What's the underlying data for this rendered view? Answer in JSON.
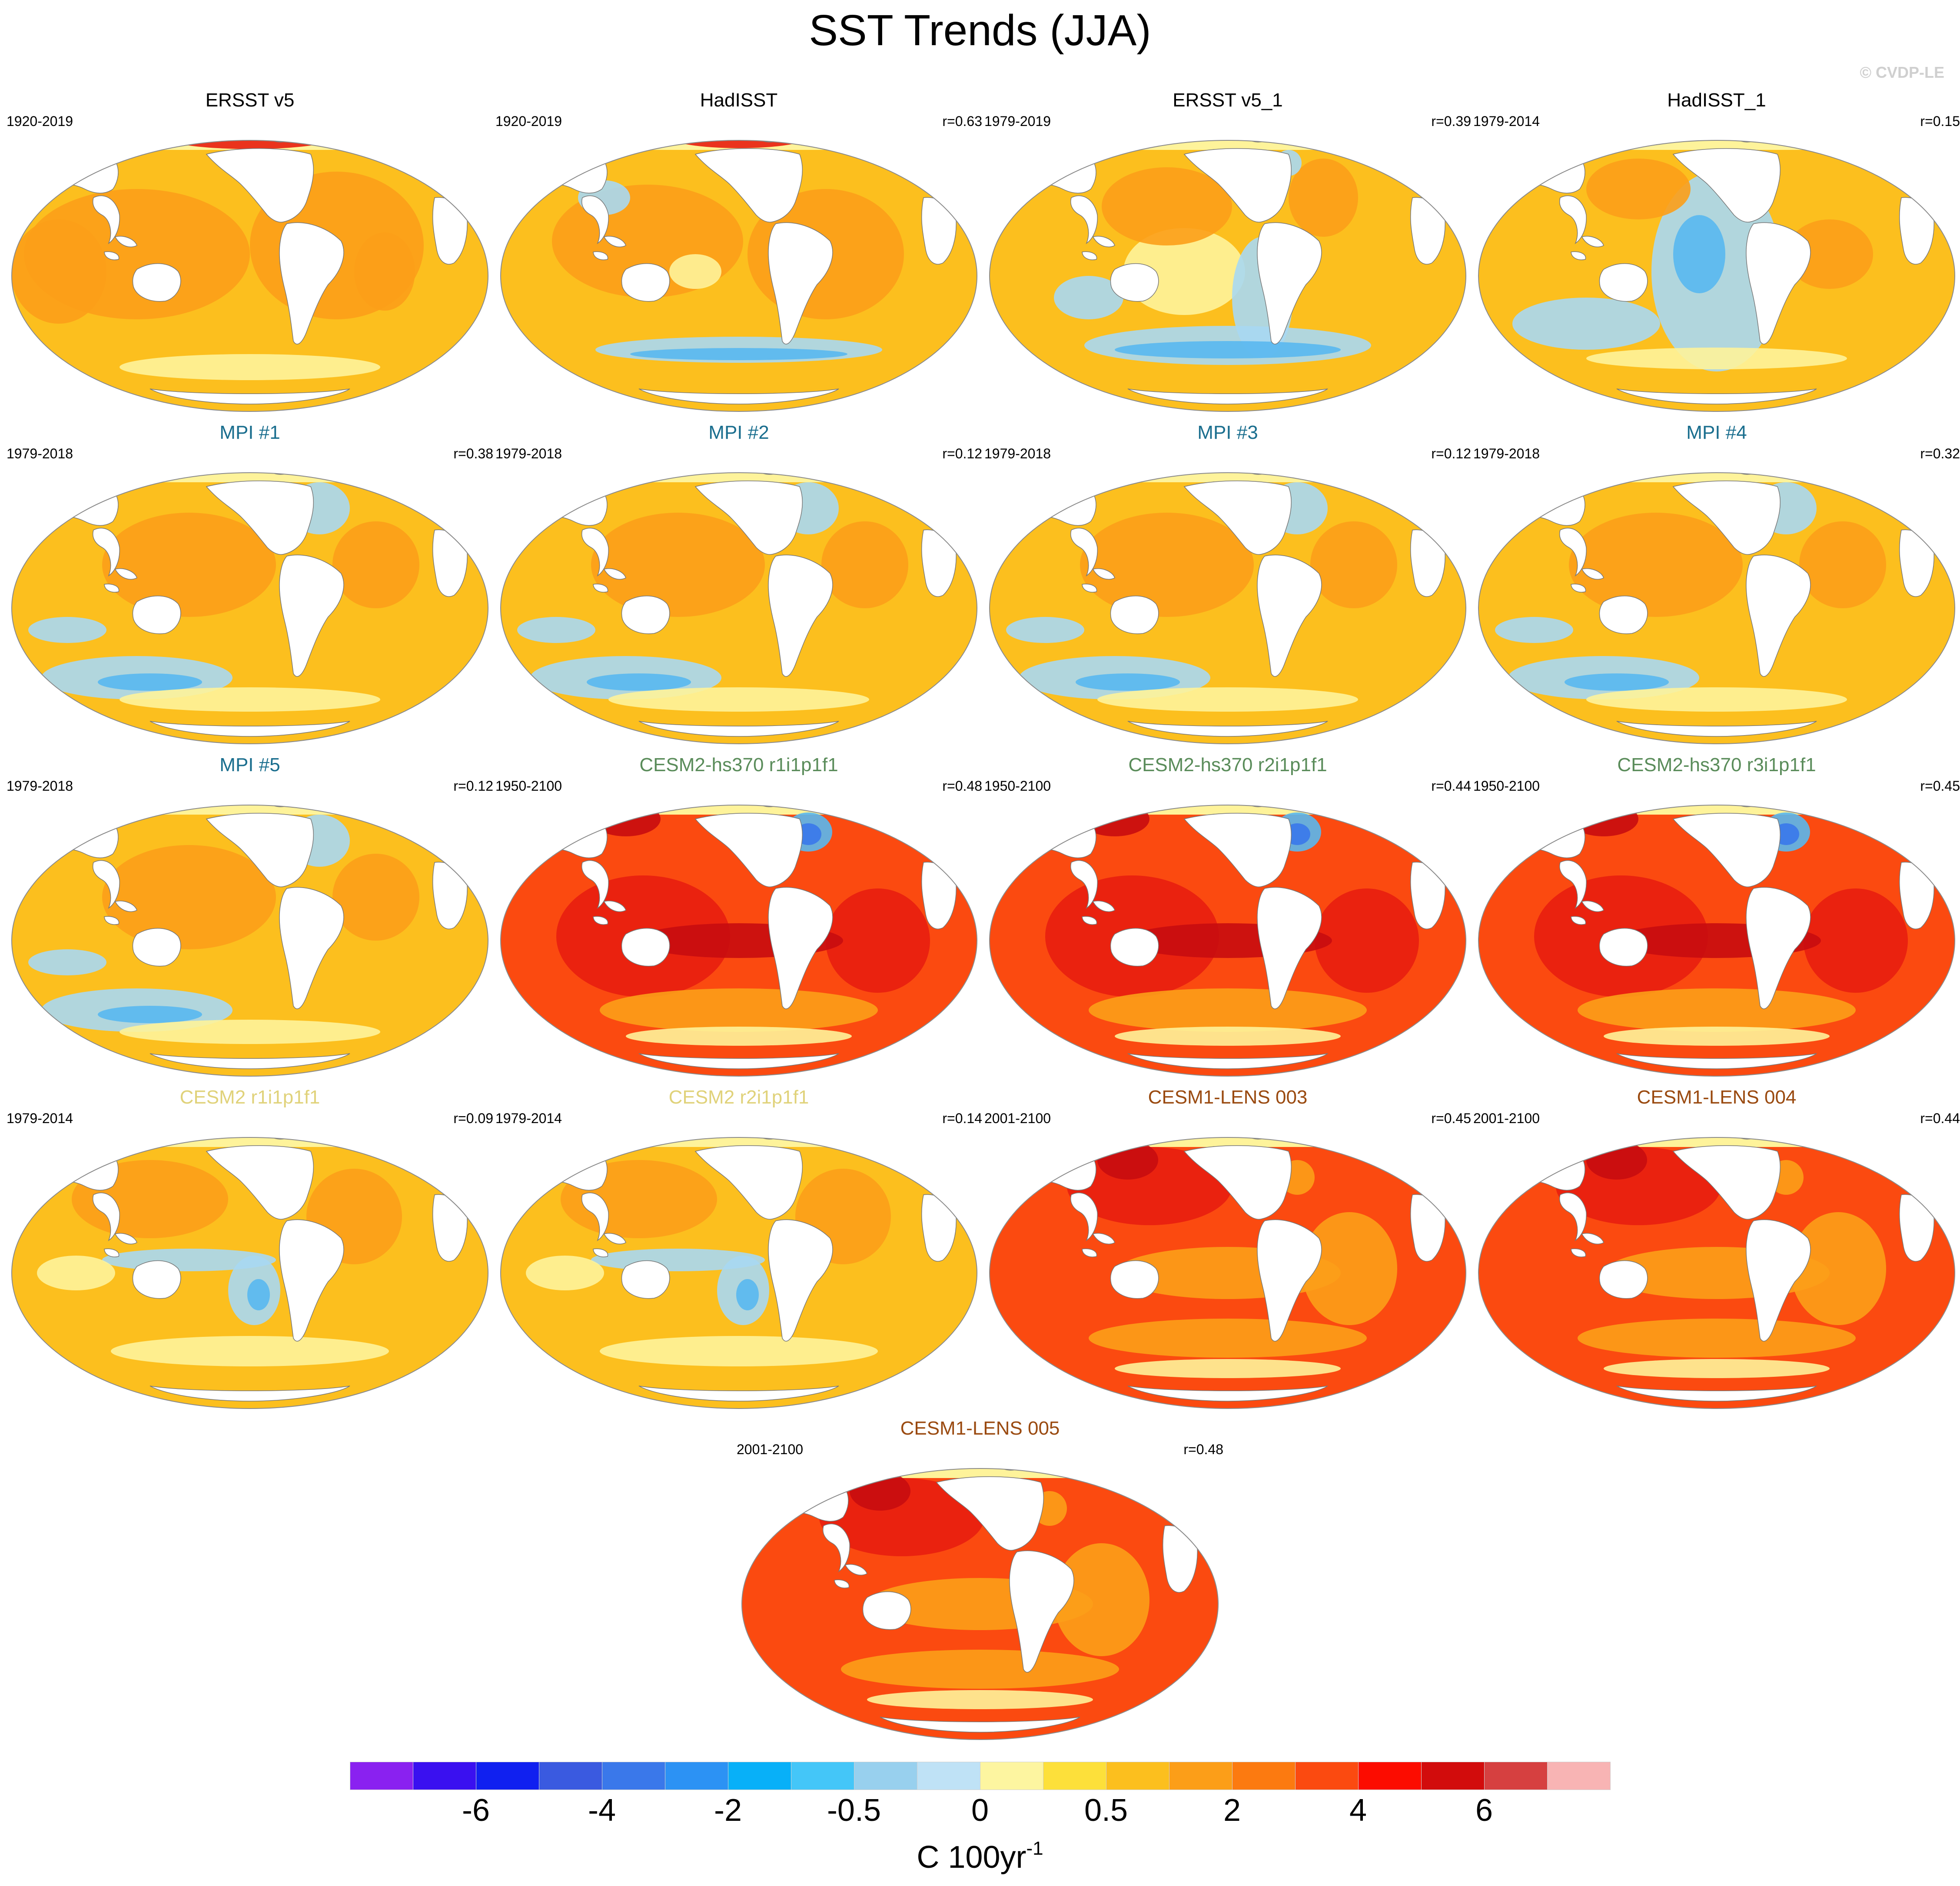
{
  "title": "SST Trends (JJA)",
  "watermark": "© CVDP-LE",
  "colors": {
    "ocean_yellow": "#fcbf1e",
    "ocean_orange": "#fc9e18",
    "ocean_lightyellow": "#fef39a",
    "ocean_red": "#fb4a10",
    "ocean_darkred": "#e81e10",
    "ocean_deepred": "#c80c10",
    "ocean_lightblue": "#a9d8f2",
    "ocean_blue": "#59b8f0",
    "land": "#ffffff",
    "coast": "#777777"
  },
  "panels": [
    {
      "title": "ERSST v5",
      "title_color": "#000000",
      "period": "1920-2019",
      "r": "",
      "palette": "obs_long"
    },
    {
      "title": "HadISST",
      "title_color": "#000000",
      "period": "1920-2019",
      "r": "r=0.63",
      "palette": "obs_long2"
    },
    {
      "title": "ERSST v5_1",
      "title_color": "#000000",
      "period": "1979-2019",
      "r": "r=0.39",
      "palette": "obs_short"
    },
    {
      "title": "HadISST_1",
      "title_color": "#000000",
      "period": "1979-2014",
      "r": "r=0.15",
      "palette": "obs_short2"
    },
    {
      "title": "MPI #1",
      "title_color": "#1a6e8e",
      "period": "1979-2018",
      "r": "r=0.38",
      "palette": "mpi"
    },
    {
      "title": "MPI #2",
      "title_color": "#1a6e8e",
      "period": "1979-2018",
      "r": "r=0.12",
      "palette": "mpi"
    },
    {
      "title": "MPI #3",
      "title_color": "#1a6e8e",
      "period": "1979-2018",
      "r": "r=0.12",
      "palette": "mpi"
    },
    {
      "title": "MPI #4",
      "title_color": "#1a6e8e",
      "period": "1979-2018",
      "r": "r=0.32",
      "palette": "mpi"
    },
    {
      "title": "MPI #5",
      "title_color": "#1a6e8e",
      "period": "1979-2018",
      "r": "r=0.12",
      "palette": "mpi"
    },
    {
      "title": "CESM2-hs370 r1i1p1f1",
      "title_color": "#5a8c5a",
      "period": "1950-2100",
      "r": "r=0.48",
      "palette": "hs370"
    },
    {
      "title": "CESM2-hs370 r2i1p1f1",
      "title_color": "#5a8c5a",
      "period": "1950-2100",
      "r": "r=0.44",
      "palette": "hs370"
    },
    {
      "title": "CESM2-hs370 r3i1p1f1",
      "title_color": "#5a8c5a",
      "period": "1950-2100",
      "r": "r=0.45",
      "palette": "hs370"
    },
    {
      "title": "CESM2 r1i1p1f1",
      "title_color": "#e0d27a",
      "period": "1979-2014",
      "r": "r=0.09",
      "palette": "cesm2"
    },
    {
      "title": "CESM2 r2i1p1f1",
      "title_color": "#e0d27a",
      "period": "1979-2014",
      "r": "r=0.14",
      "palette": "cesm2"
    },
    {
      "title": "CESM1-LENS 003",
      "title_color": "#9a4a10",
      "period": "2001-2100",
      "r": "r=0.45",
      "palette": "lens"
    },
    {
      "title": "CESM1-LENS 004",
      "title_color": "#9a4a10",
      "period": "2001-2100",
      "r": "r=0.44",
      "palette": "lens"
    },
    {
      "title": "CESM1-LENS 005",
      "title_color": "#9a4a10",
      "period": "2001-2100",
      "r": "r=0.48",
      "palette": "lens"
    }
  ],
  "colorbar": {
    "colors": [
      "#8a21f0",
      "#3a10f0",
      "#1020f0",
      "#3a5ae0",
      "#3a78ea",
      "#2c92f4",
      "#08b0f8",
      "#44c6f8",
      "#98d0ee",
      "#bfe2f6",
      "#fdf5a0",
      "#fde03a",
      "#fcbf1e",
      "#fc9e18",
      "#fc7a10",
      "#fb4a10",
      "#fc0c00",
      "#d20c0c",
      "#d64040",
      "#f8b4b4"
    ],
    "labels": [
      "-6",
      "-4",
      "-2",
      "-0.5",
      "0",
      "0.5",
      "2",
      "4",
      "6"
    ],
    "units": "C 100yr",
    "units_exp": "-1"
  }
}
